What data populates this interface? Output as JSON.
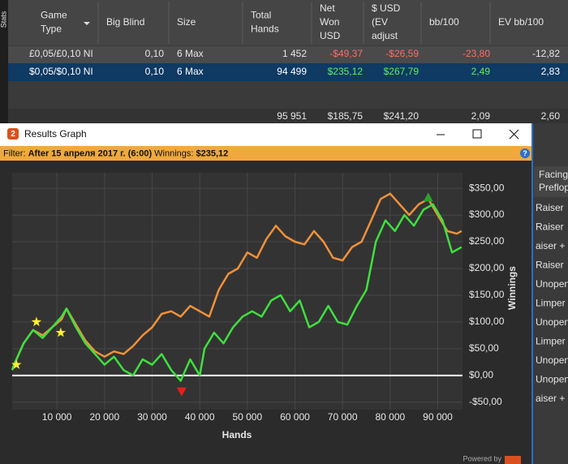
{
  "side_tab": "Stats",
  "stats_table": {
    "headers": [
      [
        "Game",
        "Type"
      ],
      [
        "Big Blind"
      ],
      [
        "Size"
      ],
      [
        "Total",
        "Hands"
      ],
      [
        "Net",
        "Won",
        "USD"
      ],
      [
        "$ USD",
        "(EV",
        "adjust"
      ],
      [
        "bb/100"
      ],
      [
        "EV bb/100"
      ]
    ],
    "rows": [
      {
        "cells": [
          "£0,05/£0,10 NI",
          "0,10",
          "6 Max",
          "1 452",
          "-$49,37",
          "-$26,59",
          "-23,80",
          "-12,82"
        ],
        "colors": [
          "#e6e6e6",
          "#e6e6e6",
          "#e6e6e6",
          "#e6e6e6",
          "#ff6b6b",
          "#ff6b6b",
          "#ff6b6b",
          "#e6e6e6"
        ]
      },
      {
        "cells": [
          "$0,05/$0,10 NI",
          "0,10",
          "6 Max",
          "94 499",
          "$235,12",
          "$267,79",
          "2,49",
          "2,83"
        ],
        "colors": [
          "#ffffff",
          "#ffffff",
          "#ffffff",
          "#ffffff",
          "#5df05d",
          "#5df05d",
          "#5df05d",
          "#ffffff"
        ]
      }
    ],
    "totals": [
      "95 951",
      "$185,75",
      "$241,20",
      "2,09",
      "2,60"
    ]
  },
  "window": {
    "title": "Results Graph",
    "filter_label": "Filter:",
    "filter_text": "After 15 апреля 2017 г. (6:00)",
    "winnings_label": "Winnings:",
    "winnings_value": "$235,12",
    "powered_by": "Powered by"
  },
  "side_panel": {
    "header": [
      "Facing",
      "Preflop"
    ],
    "items": [
      "Raiser",
      "Raiser",
      "aiser + C",
      "Raiser",
      "Unopene",
      "Limper",
      "Unopene",
      "Limper",
      "Unopene",
      "Unopene",
      "aiser + C"
    ]
  },
  "chart": {
    "type": "line",
    "xlabel": "Hands",
    "ylabel": "Winnings",
    "xlim": [
      600,
      95200
    ],
    "ylim": [
      -64,
      379
    ],
    "xticks": [
      {
        "value": 10000,
        "label": "10 000"
      },
      {
        "value": 20000,
        "label": "20 000"
      },
      {
        "value": 30000,
        "label": "30 000"
      },
      {
        "value": 40000,
        "label": "40 000"
      },
      {
        "value": 50000,
        "label": "50 000"
      },
      {
        "value": 60000,
        "label": "60 000"
      },
      {
        "value": 70000,
        "label": "70 000"
      },
      {
        "value": 80000,
        "label": "80 000"
      },
      {
        "value": 90000,
        "label": "90 000"
      }
    ],
    "yticks": [
      {
        "value": -50,
        "label": "-$50,00"
      },
      {
        "value": 0,
        "label": "$0,00"
      },
      {
        "value": 50,
        "label": "$50,00"
      },
      {
        "value": 100,
        "label": "$100,00"
      },
      {
        "value": 150,
        "label": "$150,00"
      },
      {
        "value": 200,
        "label": "$200,00"
      },
      {
        "value": 250,
        "label": "$250,00"
      },
      {
        "value": 300,
        "label": "$300,00"
      },
      {
        "value": 350,
        "label": "$350,00"
      }
    ],
    "grid": true,
    "series": [
      {
        "color": "#f0913a",
        "x": [
          600,
          1000,
          3000,
          5000,
          7000,
          9000,
          11000,
          12000,
          14000,
          16000,
          18000,
          20000,
          22000,
          24000,
          26000,
          28000,
          30000,
          32000,
          34000,
          36000,
          38000,
          40000,
          42000,
          44000,
          46000,
          48000,
          50000,
          52000,
          54000,
          56000,
          58000,
          60000,
          62000,
          64000,
          66000,
          68000,
          70000,
          72000,
          74000,
          76000,
          78000,
          80000,
          82000,
          84000,
          86000,
          88000,
          90000,
          92000,
          94000,
          95000
        ],
        "values": [
          10,
          20,
          60,
          85,
          75,
          90,
          105,
          125,
          95,
          65,
          45,
          35,
          45,
          40,
          55,
          75,
          90,
          115,
          120,
          110,
          130,
          120,
          110,
          160,
          190,
          200,
          230,
          220,
          255,
          280,
          260,
          250,
          245,
          270,
          250,
          220,
          215,
          240,
          250,
          290,
          330,
          340,
          320,
          300,
          320,
          330,
          300,
          270,
          265,
          270
        ]
      },
      {
        "color": "#3ee03e",
        "x": [
          600,
          1000,
          3000,
          5000,
          7000,
          9000,
          11000,
          12000,
          14000,
          16000,
          18000,
          20000,
          22000,
          24000,
          26000,
          28000,
          30000,
          32000,
          34000,
          36000,
          38000,
          40000,
          41000,
          43000,
          45000,
          47000,
          49000,
          51000,
          53000,
          55000,
          57000,
          59000,
          61000,
          63000,
          65000,
          67000,
          69000,
          71000,
          73000,
          75000,
          77000,
          79000,
          81000,
          83000,
          85000,
          87000,
          89000,
          91000,
          93000,
          95000
        ],
        "values": [
          10,
          20,
          60,
          85,
          70,
          90,
          110,
          125,
          90,
          60,
          40,
          20,
          35,
          10,
          0,
          30,
          20,
          40,
          10,
          -10,
          30,
          0,
          50,
          80,
          60,
          90,
          110,
          120,
          110,
          140,
          150,
          120,
          140,
          90,
          100,
          130,
          100,
          95,
          130,
          160,
          250,
          290,
          270,
          300,
          280,
          310,
          320,
          290,
          230,
          240
        ]
      }
    ],
    "markers": [
      {
        "x": 1500,
        "y": 20,
        "shape": "star",
        "color": "#ffee33"
      },
      {
        "x": 5700,
        "y": 100,
        "shape": "star",
        "color": "#ffee33"
      },
      {
        "x": 10800,
        "y": 80,
        "shape": "star",
        "color": "#ffee33"
      },
      {
        "x": 88000,
        "y": 333,
        "shape": "up",
        "color": "#2e9e2e"
      },
      {
        "x": 36200,
        "y": -30,
        "shape": "down",
        "color": "#e02020"
      }
    ]
  }
}
